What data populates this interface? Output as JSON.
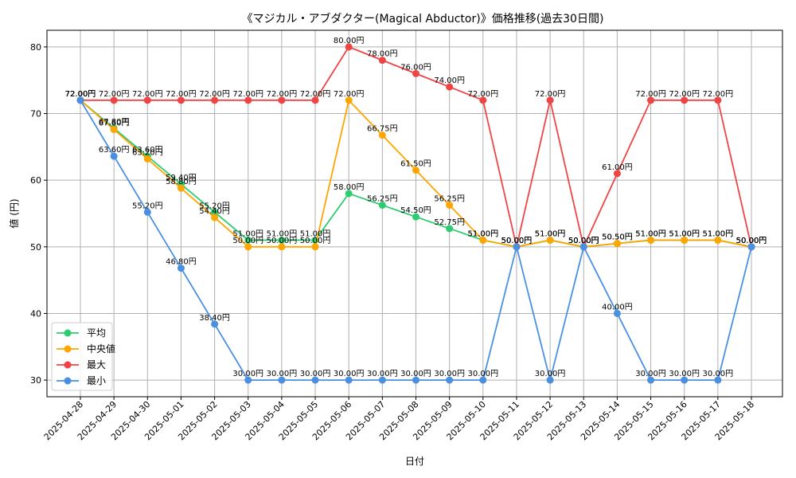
{
  "chart_data": {
    "type": "line",
    "title": "《マジカル・アブダクター(Magical Abductor)》価格推移(過去30日間)",
    "xlabel": "日付",
    "ylabel": "値 (円)",
    "ylim": [
      27.5,
      82.5
    ],
    "yticks": [
      30,
      40,
      50,
      60,
      70,
      80
    ],
    "grid": true,
    "legend_position": "bottom-left",
    "label_suffix": "円",
    "categories": [
      "2025-04-28",
      "2025-04-29",
      "2025-04-30",
      "2025-05-01",
      "2025-05-02",
      "2025-05-03",
      "2025-05-04",
      "2025-05-05",
      "2025-05-06",
      "2025-05-07",
      "2025-05-08",
      "2025-05-09",
      "2025-05-10",
      "2025-05-11",
      "2025-05-12",
      "2025-05-13",
      "2025-05-14",
      "2025-05-15",
      "2025-05-16",
      "2025-05-17",
      "2025-05-18"
    ],
    "series": [
      {
        "name": "平均",
        "color": "#2ecc71",
        "values": [
          72.0,
          67.8,
          63.6,
          59.4,
          55.2,
          51.0,
          51.0,
          51.0,
          58.0,
          56.25,
          54.5,
          52.75,
          51.0,
          50.0,
          51.0,
          50.0,
          50.5,
          51.0,
          51.0,
          51.0,
          50.0
        ]
      },
      {
        "name": "中央値",
        "color": "#ffa500",
        "values": [
          72.0,
          67.6,
          63.2,
          58.8,
          54.4,
          50.0,
          50.0,
          50.0,
          72.0,
          66.75,
          61.5,
          56.25,
          51.0,
          50.0,
          51.0,
          50.0,
          50.5,
          51.0,
          51.0,
          51.0,
          50.0
        ]
      },
      {
        "name": "最大",
        "color": "#ef4444",
        "values": [
          72.0,
          72.0,
          72.0,
          72.0,
          72.0,
          72.0,
          72.0,
          72.0,
          80.0,
          78.0,
          76.0,
          74.0,
          72.0,
          50.0,
          72.0,
          50.0,
          61.0,
          72.0,
          72.0,
          72.0,
          50.0
        ]
      },
      {
        "name": "最小",
        "color": "#4a90e2",
        "values": [
          72.0,
          63.6,
          55.2,
          46.8,
          38.4,
          30.0,
          30.0,
          30.0,
          30.0,
          30.0,
          30.0,
          30.0,
          30.0,
          50.0,
          30.0,
          50.0,
          40.0,
          30.0,
          30.0,
          30.0,
          50.0
        ]
      }
    ]
  }
}
